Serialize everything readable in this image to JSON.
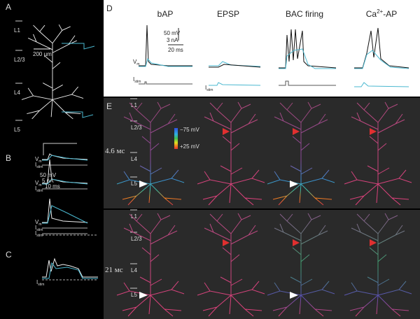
{
  "panel_a": {
    "label": "A",
    "layers": [
      "L1",
      "L2/3",
      "L4",
      "L5"
    ],
    "scale_bar": "200 µm"
  },
  "panel_b": {
    "label": "B",
    "scale": [
      "50 mV",
      "5 nA",
      "10 ms"
    ],
    "traces": [
      [
        {
          "main": "V",
          "sub": "m"
        },
        {
          "main": "I",
          "sub": "stim"
        }
      ],
      [
        {
          "main": "V",
          "sub": "m"
        },
        {
          "main": "I",
          "sub": "stim"
        }
      ],
      [
        {
          "main": "V",
          "sub": "m"
        },
        {
          "main": "I",
          "sub": "stim"
        },
        {
          "main": "I",
          "sub": "stim"
        }
      ]
    ]
  },
  "panel_c": {
    "label": "C",
    "traces": [
      {
        "main": "I",
        "sub": "stim"
      }
    ]
  },
  "panel_d": {
    "label": "D",
    "columns": [
      {
        "main": "bAP"
      },
      {
        "main": "EPSP"
      },
      {
        "main": "BAC firing"
      },
      {
        "main": "Ca",
        "sup": "2+",
        "rest": "-AP"
      }
    ],
    "scale": [
      "50 mV",
      "3 nA",
      "20 ms"
    ],
    "v_label": {
      "main": "V",
      "sub": "m"
    },
    "i_labels": [
      {
        "main": "I",
        "sub": "stim"
      },
      {
        "main": "I",
        "sub": "stim"
      }
    ]
  },
  "panel_e": {
    "label": "E",
    "layers_top": [
      "L1",
      "L2/3",
      "L4",
      "L5"
    ],
    "layers_bottom": [
      "L1",
      "L2/3",
      "L4",
      "L5"
    ],
    "times": [
      "4.6 мс",
      "21 мс"
    ],
    "colorbar": [
      "−75 mV",
      "+25 mV"
    ]
  }
}
